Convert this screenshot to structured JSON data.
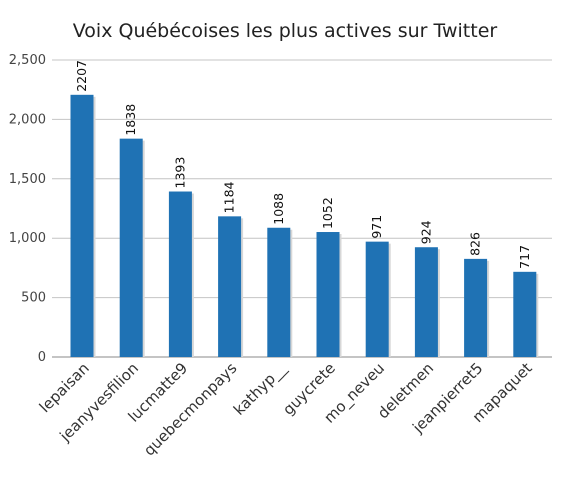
{
  "chart_data": {
    "type": "bar",
    "title": "Voix Québécoises les plus actives sur Twitter",
    "xlabel": "",
    "ylabel": "",
    "categories": [
      "lepaisan",
      "jeanyvesfilion",
      "lucmatte9",
      "quebecmonpays",
      "kathyp__",
      "guycrete",
      "mo_neveu",
      "deletmen",
      "jeanpierret5",
      "mapaquet"
    ],
    "values": [
      2207,
      1838,
      1393,
      1184,
      1088,
      1052,
      971,
      924,
      826,
      717
    ],
    "ylim": [
      0,
      2500
    ],
    "yticks": [
      0,
      500,
      1000,
      1500,
      2000,
      2500
    ],
    "ytick_labels": [
      "0",
      "500",
      "1,000",
      "1,500",
      "2,000",
      "2,500"
    ],
    "grid": true,
    "legend": "none",
    "bar_color": "#1f72b4"
  }
}
